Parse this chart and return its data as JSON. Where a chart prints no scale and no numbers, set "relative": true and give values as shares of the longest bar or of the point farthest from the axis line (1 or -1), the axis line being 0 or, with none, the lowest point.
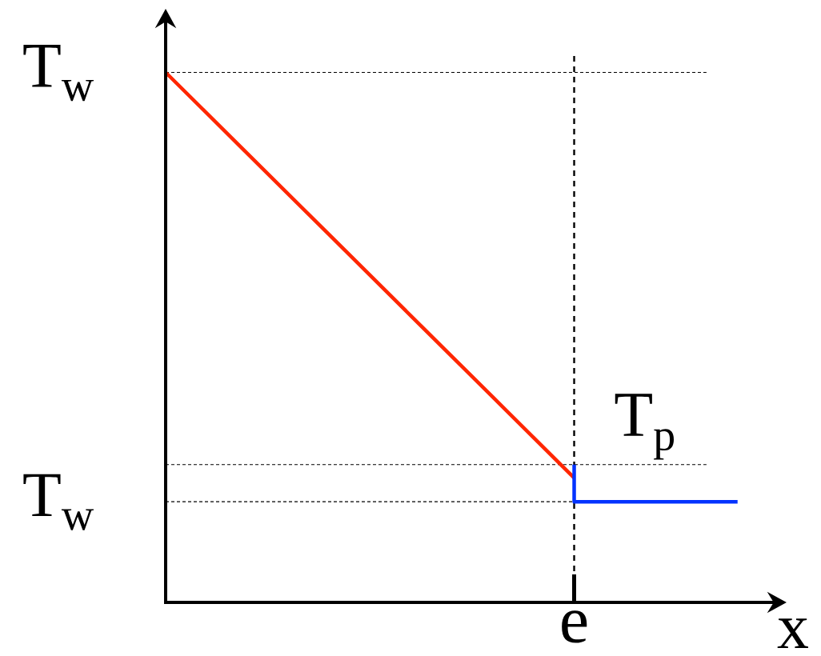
{
  "chart_data": {
    "type": "line",
    "relative": true,
    "xlabel": "x",
    "categories": [
      null,
      null,
      null,
      null,
      null,
      null,
      null,
      null
    ],
    "series": [
      {
        "color": "#ff2600",
        "values": [
          1,
          0.847,
          0.694,
          0.541,
          0.388,
          0.235,
          null,
          null
        ]
      },
      {
        "type": "step",
        "color": "#0433ff",
        "values": [
          null,
          null,
          null,
          null,
          null,
          0.26,
          0.19,
          0.19
        ]
      }
    ],
    "ref_lines": [
      {
        "axis": "y",
        "value": 1,
        "label": "T$_{w}$",
        "line_style": "dashed"
      },
      {
        "axis": "y",
        "value": 0.26,
        "label": "T$_{p}$",
        "line_style": "dashed"
      },
      {
        "axis": "y",
        "value": 0.19,
        "label": "T$_{w}$",
        "line_style": "dashed"
      }
    ],
    "annotations": [
      "e"
    ]
  }
}
